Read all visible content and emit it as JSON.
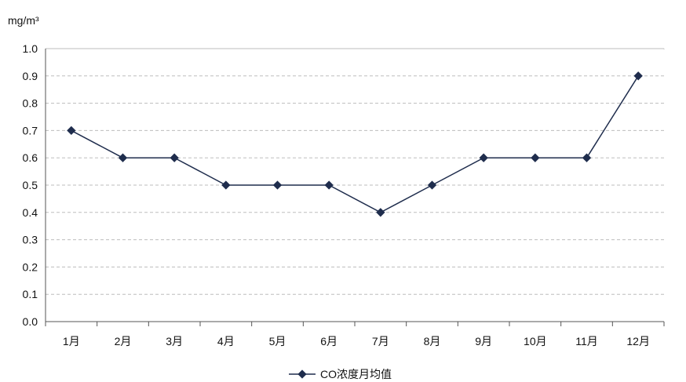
{
  "chart_data": {
    "type": "line",
    "ylabel": "mg/m³",
    "categories": [
      "1月",
      "2月",
      "3月",
      "4月",
      "5月",
      "6月",
      "7月",
      "8月",
      "9月",
      "10月",
      "11月",
      "12月"
    ],
    "series": [
      {
        "name": "CO浓度月均值",
        "values": [
          0.7,
          0.6,
          0.6,
          0.5,
          0.5,
          0.5,
          0.4,
          0.5,
          0.6,
          0.6,
          0.6,
          0.9
        ]
      }
    ],
    "yticks": [
      "0.0",
      "0.1",
      "0.2",
      "0.3",
      "0.4",
      "0.5",
      "0.6",
      "0.7",
      "0.8",
      "0.9",
      "1.0"
    ],
    "ylim": [
      0,
      1.0
    ],
    "grid": "horizontal dashed",
    "legend_position": "bottom-center",
    "colors": {
      "series": "#1f2d4d",
      "grid": "#bdbdbd",
      "axis": "#555555"
    }
  }
}
